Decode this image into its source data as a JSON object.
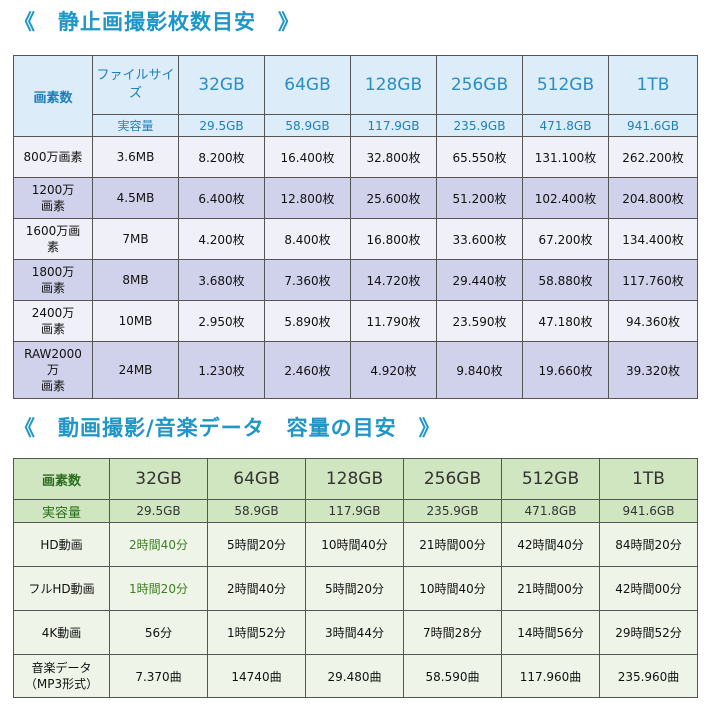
{
  "section1": {
    "title": "《　静止画撮影枚数目安　》",
    "header_label": "画素数",
    "filesize_label": "ファイルサイズ",
    "capacities": [
      "32GB",
      "64GB",
      "128GB",
      "256GB",
      "512GB",
      "1TB"
    ],
    "actual_label": "実容量",
    "actual": [
      "29.5GB",
      "58.9GB",
      "117.9GB",
      "235.9GB",
      "471.8GB",
      "941.6GB"
    ],
    "rows": [
      {
        "label": "800万画素",
        "size": "3.6MB",
        "values": [
          "8.200枚",
          "16.400枚",
          "32.800枚",
          "65.550枚",
          "131.100枚",
          "262.200枚"
        ]
      },
      {
        "label": "1200万\n画素",
        "size": "4.5MB",
        "values": [
          "6.400枚",
          "12.800枚",
          "25.600枚",
          "51.200枚",
          "102.400枚",
          "204.800枚"
        ]
      },
      {
        "label": "1600万画\n素",
        "size": "7MB",
        "values": [
          "4.200枚",
          "8.400枚",
          "16.800枚",
          "33.600枚",
          "67.200枚",
          "134.400枚"
        ]
      },
      {
        "label": "1800万\n画素",
        "size": "8MB",
        "values": [
          "3.680枚",
          "7.360枚",
          "14.720枚",
          "29.440枚",
          "58.880枚",
          "117.760枚"
        ]
      },
      {
        "label": "2400万\n画素",
        "size": "10MB",
        "values": [
          "2.950枚",
          "5.890枚",
          "11.790枚",
          "23.590枚",
          "47.180枚",
          "94.360枚"
        ]
      },
      {
        "label": "RAW2000\n万\n画素",
        "size": "24MB",
        "values": [
          "1.230枚",
          "2.460枚",
          "4.920枚",
          "9.840枚",
          "19.660枚",
          "39.320枚"
        ]
      }
    ]
  },
  "section2": {
    "title": "《　動画撮影/音楽データ　容量の目安　》",
    "header_label": "画素数",
    "capacities": [
      "32GB",
      "64GB",
      "128GB",
      "256GB",
      "512GB",
      "1TB"
    ],
    "actual_label": "実容量",
    "actual": [
      "29.5GB",
      "58.9GB",
      "117.9GB",
      "235.9GB",
      "471.8GB",
      "941.6GB"
    ],
    "rows": [
      {
        "label": "HD動画",
        "values": [
          "2時間40分",
          "5時間20分",
          "10時間40分",
          "21時間00分",
          "42時間40分",
          "84時間20分"
        ]
      },
      {
        "label": "フルHD動画",
        "values": [
          "1時間20分",
          "2時間40分",
          "5時間20分",
          "10時間40分",
          "21時間00分",
          "42時間00分"
        ]
      },
      {
        "label": "4K動画",
        "values": [
          "56分",
          "1時間52分",
          "3時間44分",
          "7時間28分",
          "14時間56分",
          "29時間52分"
        ]
      },
      {
        "label": "音楽データ\n（MP3形式）",
        "values": [
          "7.370曲",
          "14740曲",
          "29.480曲",
          "58.590曲",
          "117.960曲",
          "235.960曲"
        ]
      }
    ]
  }
}
